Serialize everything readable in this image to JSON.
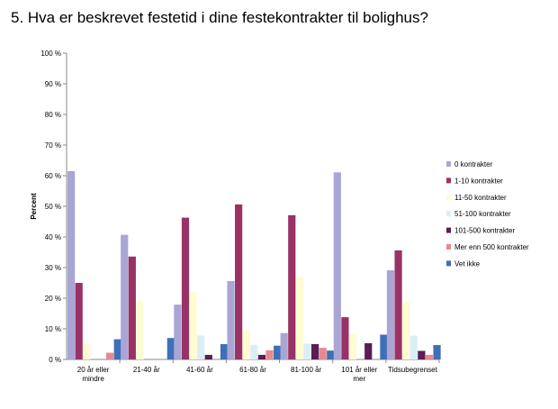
{
  "chart_data": {
    "type": "bar",
    "title": "5. Hva er beskrevet festetid i dine festekontrakter til bolighus?",
    "ylabel": "Percent",
    "xlabel": "",
    "ylim": [
      0,
      100
    ],
    "y_ticks": [
      "0 %",
      "10 %",
      "20 %",
      "30 %",
      "40 %",
      "50 %",
      "60 %",
      "70 %",
      "80 %",
      "90 %",
      "100 %"
    ],
    "grid": false,
    "legend_position": "right",
    "categories": [
      [
        "20 år eller",
        "mindre"
      ],
      [
        "21-40 år"
      ],
      [
        "41-60 år"
      ],
      [
        "61-80 år"
      ],
      [
        "81-100 år"
      ],
      [
        "101 år eller",
        "mer"
      ],
      [
        "Tidsubegrenset"
      ]
    ],
    "series": [
      {
        "name": "0 kontrakter",
        "color": "#a9a6d6",
        "values": [
          61.5,
          40.7,
          17.9,
          25.6,
          8.6,
          61.1,
          29.1
        ]
      },
      {
        "name": "1-10 kontrakter",
        "color": "#993366",
        "values": [
          25.0,
          33.6,
          46.3,
          50.6,
          47.1,
          13.8,
          35.6
        ]
      },
      {
        "name": "11-50 kontrakter",
        "color": "#fffcd2",
        "values": [
          5.0,
          19.0,
          22.0,
          9.5,
          27.0,
          8.2,
          18.8
        ]
      },
      {
        "name": "51-100 kontrakter",
        "color": "#dceef5",
        "values": [
          0,
          0,
          7.8,
          4.8,
          5.2,
          0,
          7.8
        ]
      },
      {
        "name": "101-500 kontrakter",
        "color": "#5a1d55",
        "values": [
          0,
          0,
          1.5,
          1.5,
          5.0,
          5.3,
          2.8
        ]
      },
      {
        "name": "Mer enn 500 kontrakter",
        "color": "#e58a8f",
        "values": [
          2.2,
          0,
          0,
          3.0,
          3.8,
          0,
          1.5
        ]
      },
      {
        "name": "Vet ikke",
        "color": "#3e70b8",
        "values": [
          6.6,
          7.0,
          5.0,
          4.5,
          2.9,
          8.1,
          4.7
        ]
      }
    ]
  }
}
